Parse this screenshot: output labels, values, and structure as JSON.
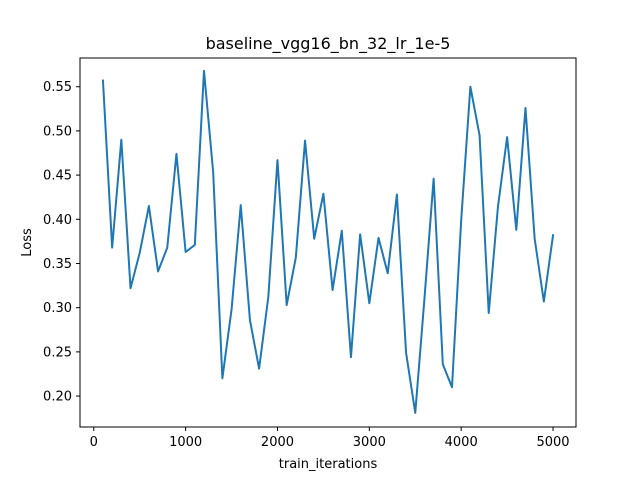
{
  "chart_data": {
    "type": "line",
    "title": "baseline_vgg16_bn_32_lr_1e-5",
    "xlabel": "train_iterations",
    "ylabel": "Loss",
    "xlim": [
      -150,
      5250
    ],
    "ylim": [
      0.165,
      0.5825
    ],
    "xticks": [
      0,
      1000,
      2000,
      3000,
      4000,
      5000
    ],
    "yticks": [
      0.2,
      0.25,
      0.3,
      0.35,
      0.4,
      0.45,
      0.5,
      0.55
    ],
    "xtick_labels": [
      "0",
      "1000",
      "2000",
      "3000",
      "4000",
      "5000"
    ],
    "ytick_labels": [
      "0.20",
      "0.25",
      "0.30",
      "0.35",
      "0.40",
      "0.45",
      "0.50",
      "0.55"
    ],
    "grid": false,
    "legend": "none",
    "series": [
      {
        "color": "#1f77b4",
        "x": [
          100,
          200,
          300,
          400,
          500,
          600,
          700,
          800,
          900,
          1000,
          1100,
          1200,
          1300,
          1400,
          1500,
          1600,
          1700,
          1800,
          1900,
          2000,
          2100,
          2200,
          2300,
          2400,
          2500,
          2600,
          2700,
          2800,
          2900,
          3000,
          3100,
          3200,
          3300,
          3400,
          3500,
          3600,
          3700,
          3800,
          3900,
          4000,
          4100,
          4200,
          4300,
          4400,
          4500,
          4600,
          4700,
          4800,
          4900,
          5000
        ],
        "y": [
          0.557,
          0.368,
          0.49,
          0.322,
          0.362,
          0.415,
          0.341,
          0.368,
          0.474,
          0.363,
          0.371,
          0.568,
          0.453,
          0.22,
          0.298,
          0.416,
          0.286,
          0.231,
          0.312,
          0.467,
          0.303,
          0.357,
          0.489,
          0.378,
          0.429,
          0.32,
          0.387,
          0.244,
          0.383,
          0.305,
          0.379,
          0.339,
          0.428,
          0.249,
          0.181,
          0.31,
          0.446,
          0.236,
          0.21,
          0.399,
          0.55,
          0.495,
          0.294,
          0.414,
          0.493,
          0.388,
          0.526,
          0.378,
          0.307,
          0.382
        ]
      }
    ]
  }
}
